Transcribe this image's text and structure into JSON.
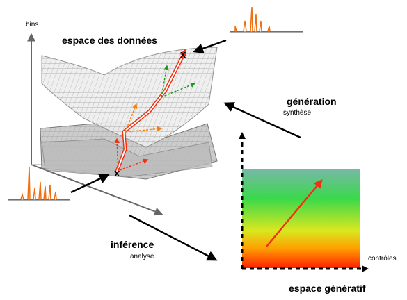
{
  "axis_labels": {
    "bins": "bins",
    "controls": "contrôles"
  },
  "spaces": {
    "data": "espace des données",
    "generative": "espace génératif"
  },
  "processes": [
    {
      "title": "génération",
      "subtitle": "synthèse"
    },
    {
      "title": "inférence",
      "subtitle": "analyse"
    }
  ],
  "points": [
    "x",
    "x"
  ]
}
